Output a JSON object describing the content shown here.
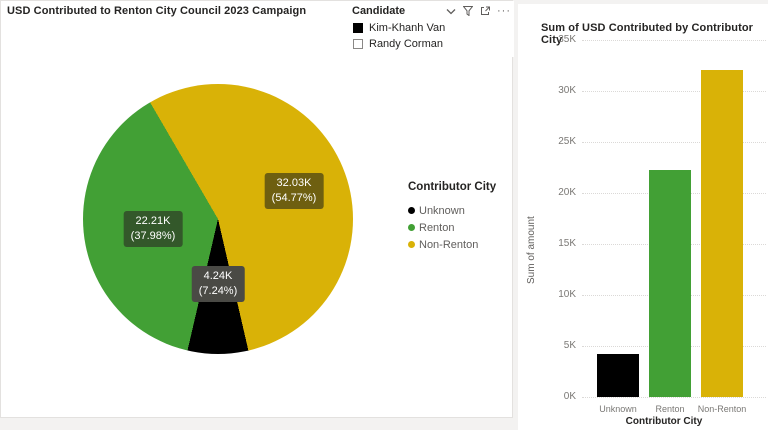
{
  "pie_card": {
    "title": "USD Contributed to Renton City Council 2023 Campaign",
    "legend": {
      "title": "Contributor City",
      "items": [
        {
          "label": "Unknown",
          "color": "#000000"
        },
        {
          "label": "Renton",
          "color": "#42A035"
        },
        {
          "label": "Non-Renton",
          "color": "#D9B207"
        }
      ]
    },
    "labels": [
      {
        "value": "32.03K",
        "pct": "(54.77%)"
      },
      {
        "value": "22.21K",
        "pct": "(37.98%)"
      },
      {
        "value": "4.24K",
        "pct": "(7.24%)"
      }
    ]
  },
  "slicer": {
    "title": "Candidate",
    "items": [
      {
        "label": "Kim-Khanh Van",
        "checked": true
      },
      {
        "label": "Randy Corman",
        "checked": false
      }
    ],
    "icons": [
      "chevron-down",
      "filter",
      "focus-mode",
      "more-options"
    ],
    "more_options_glyph": "···"
  },
  "bar_card": {
    "title": "Sum of USD Contributed by Contributor City",
    "y_axis_label": "Sum of amount",
    "x_axis_label": "Contributor City",
    "y_ticks": [
      "35K",
      "30K",
      "25K",
      "20K",
      "15K",
      "10K",
      "5K",
      "0K"
    ],
    "categories": [
      "Unknown",
      "Renton",
      "Non-Renton"
    ]
  },
  "chart_data": [
    {
      "type": "pie",
      "title": "USD Contributed to Renton City Council 2023 Campaign",
      "categories": [
        "Non-Renton",
        "Renton",
        "Unknown"
      ],
      "values": [
        32030,
        22210,
        4240
      ],
      "percentages": [
        54.77,
        37.98,
        7.24
      ],
      "labels": [
        "32.03K (54.77%)",
        "22.21K (37.98%)",
        "4.24K (7.24%)"
      ],
      "colors": [
        "#D9B207",
        "#42A035",
        "#000000"
      ],
      "legend_title": "Contributor City",
      "legend_entries": [
        "Unknown",
        "Renton",
        "Non-Renton"
      ],
      "legend_position": "right",
      "start_angle_deg": 167,
      "direction": "clockwise"
    },
    {
      "type": "bar",
      "title": "Sum of USD Contributed by Contributor City",
      "categories": [
        "Unknown",
        "Renton",
        "Non-Renton"
      ],
      "values": [
        4240,
        22210,
        32030
      ],
      "colors": [
        "#000000",
        "#42A035",
        "#D9B207"
      ],
      "xlabel": "Contributor City",
      "ylabel": "Sum of amount",
      "ylim": [
        0,
        35000
      ],
      "ytick_step": 5000,
      "grid": true,
      "legend_position": "none"
    }
  ]
}
